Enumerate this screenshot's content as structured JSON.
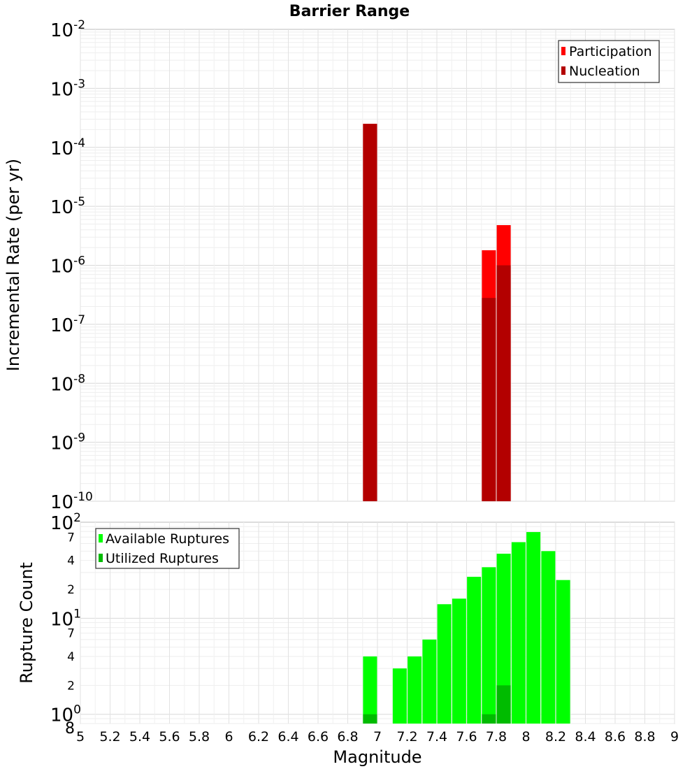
{
  "chart_data": [
    {
      "type": "bar",
      "title": "Barrier Range",
      "ylabel": "Incremental Rate (per yr)",
      "y_scale": "log",
      "ylim": [
        1e-10,
        0.01
      ],
      "y_major_ticks": [
        {
          "base": "10",
          "exp": "-2"
        },
        {
          "base": "10",
          "exp": "-3"
        },
        {
          "base": "10",
          "exp": "-4"
        },
        {
          "base": "10",
          "exp": "-5"
        },
        {
          "base": "10",
          "exp": "-6"
        },
        {
          "base": "10",
          "exp": "-7"
        },
        {
          "base": "10",
          "exp": "-8"
        },
        {
          "base": "10",
          "exp": "-9"
        },
        {
          "base": "10",
          "exp": "-10"
        }
      ],
      "grid": true,
      "legend_position": "top-right",
      "series": [
        {
          "name": "Participation",
          "color": "#ff0000",
          "x": [
            6.95,
            7.75,
            7.85
          ],
          "values": [
            0.00025,
            1.8e-06,
            4.8e-06
          ]
        },
        {
          "name": "Nucleation",
          "color": "#b30000",
          "x": [
            6.95,
            7.75,
            7.85
          ],
          "values": [
            0.00025,
            2.8e-07,
            1e-06
          ]
        }
      ]
    },
    {
      "type": "bar",
      "xlabel": "Magnitude",
      "ylabel": "Rupture Count",
      "y_scale": "log",
      "ylim": [
        0.8,
        100
      ],
      "xlim": [
        5,
        9
      ],
      "x_ticks": [
        "5",
        "5.2",
        "5.4",
        "5.6",
        "5.8",
        "6",
        "6.2",
        "6.4",
        "6.6",
        "6.8",
        "7",
        "7.2",
        "7.4",
        "7.6",
        "7.8",
        "8",
        "8.2",
        "8.4",
        "8.6",
        "8.8",
        "9"
      ],
      "y_major_ticks": [
        {
          "base": "10",
          "exp": "2"
        },
        {
          "base": "10",
          "exp": "1"
        },
        {
          "base": "10",
          "exp": "0"
        }
      ],
      "y_minor_labels": [
        "7",
        "4",
        "2",
        "7",
        "4",
        "2",
        "8"
      ],
      "grid": true,
      "legend_position": "top-left",
      "series": [
        {
          "name": "Available Ruptures",
          "color": "#00ff00",
          "x": [
            6.95,
            7.15,
            7.25,
            7.35,
            7.45,
            7.55,
            7.65,
            7.75,
            7.85,
            7.95,
            8.05,
            8.15,
            8.25
          ],
          "values": [
            4,
            3,
            4,
            6,
            14,
            16,
            27,
            34,
            47,
            62,
            79,
            50,
            25
          ]
        },
        {
          "name": "Utilized Ruptures",
          "color": "#00bb00",
          "x": [
            6.95,
            7.75,
            7.85
          ],
          "values": [
            1,
            1,
            2
          ]
        }
      ]
    }
  ]
}
